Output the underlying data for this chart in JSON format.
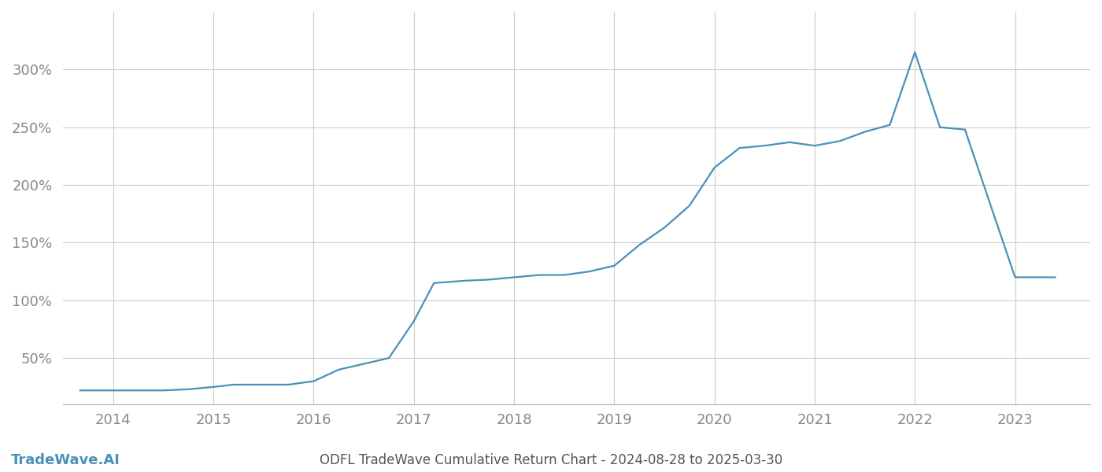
{
  "title": "ODFL TradeWave Cumulative Return Chart - 2024-08-28 to 2025-03-30",
  "watermark": "TradeWave.AI",
  "line_color": "#4a90b8",
  "background_color": "#ffffff",
  "grid_color": "#cccccc",
  "tick_color": "#888888",
  "title_color": "#555555",
  "x_values": [
    2013.67,
    2014.0,
    2014.2,
    2014.5,
    2014.75,
    2015.0,
    2015.2,
    2015.5,
    2015.75,
    2016.0,
    2016.25,
    2016.5,
    2016.75,
    2017.0,
    2017.2,
    2017.5,
    2017.75,
    2018.0,
    2018.25,
    2018.5,
    2018.75,
    2019.0,
    2019.25,
    2019.5,
    2019.75,
    2020.0,
    2020.25,
    2020.5,
    2020.75,
    2021.0,
    2021.25,
    2021.5,
    2021.75,
    2022.0,
    2022.25,
    2022.5,
    2023.0,
    2023.4
  ],
  "y_values": [
    22,
    22,
    22,
    22,
    23,
    25,
    27,
    27,
    27,
    30,
    40,
    45,
    50,
    82,
    115,
    117,
    118,
    120,
    122,
    122,
    125,
    130,
    148,
    163,
    182,
    215,
    232,
    234,
    237,
    234,
    238,
    246,
    252,
    315,
    250,
    248,
    120,
    120
  ],
  "ylim_bottom": 10,
  "ylim_top": 350,
  "xlim": [
    2013.5,
    2023.75
  ],
  "yticks": [
    50,
    100,
    150,
    200,
    250,
    300
  ],
  "ytick_labels": [
    "50%",
    "100%",
    "150%",
    "200%",
    "250%",
    "300%"
  ],
  "xticks": [
    2014,
    2015,
    2016,
    2017,
    2018,
    2019,
    2020,
    2021,
    2022,
    2023
  ],
  "xtick_labels": [
    "2014",
    "2015",
    "2016",
    "2017",
    "2018",
    "2019",
    "2020",
    "2021",
    "2022",
    "2023"
  ],
  "line_width": 1.6,
  "font_size_ticks": 13,
  "font_size_title": 12,
  "font_size_watermark": 13
}
